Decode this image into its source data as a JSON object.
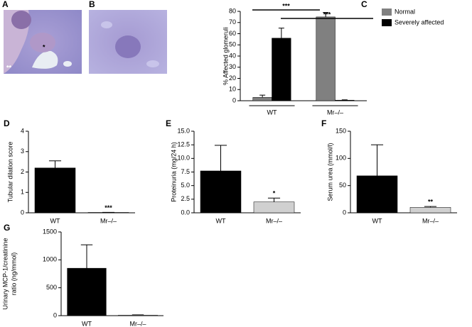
{
  "panels": [
    {
      "label": "A",
      "annotations": [
        "*",
        "**"
      ]
    },
    {
      "label": "B"
    }
  ],
  "chart_data": [
    {
      "type": "bar",
      "panel": "C",
      "ylabel": "% Affected glomeruli",
      "categories": [
        "WT",
        "Mr–/–"
      ],
      "series": [
        {
          "name": "Normal",
          "color": "#808080",
          "values": [
            3,
            75
          ],
          "errors": [
            2,
            4
          ]
        },
        {
          "name": "Severely affected",
          "color": "#000000",
          "values": [
            56,
            0.5
          ],
          "errors": [
            9,
            0.3
          ]
        }
      ],
      "ylim": [
        0,
        80
      ],
      "yticks": [
        0,
        10,
        20,
        30,
        40,
        50,
        60,
        70,
        80
      ],
      "significance": [
        "***",
        "***"
      ],
      "legend": "outside-right"
    },
    {
      "type": "bar",
      "panel": "D",
      "ylabel": "Tubular dilation score",
      "categories": [
        "WT",
        "Mr–/–"
      ],
      "values": [
        2.2,
        0.02
      ],
      "errors": [
        0.35,
        0
      ],
      "colors": [
        "#000000",
        "#d0d0d0"
      ],
      "annotation": "***",
      "ylim": [
        0,
        4
      ],
      "yticks": [
        0,
        1,
        2,
        3,
        4
      ]
    },
    {
      "type": "bar",
      "panel": "E",
      "ylabel": "Proteinuria (mg/24 h)",
      "categories": [
        "WT",
        "Mr–/–"
      ],
      "values": [
        7.7,
        2.0
      ],
      "errors": [
        4.7,
        0.7
      ],
      "colors": [
        "#000000",
        "#d0d0d0"
      ],
      "annotation": "*",
      "ylim": [
        0,
        15
      ],
      "yticks": [
        {
          "value": 0,
          "label": "0.0"
        },
        {
          "value": 2.5,
          "label": "2.5"
        },
        {
          "value": 5,
          "label": "5.0"
        },
        {
          "value": 7.5,
          "label": "7.5"
        },
        {
          "value": 10,
          "label": "10.0"
        },
        {
          "value": 12.5,
          "label": "12.5"
        },
        {
          "value": 15,
          "label": "15.0"
        }
      ]
    },
    {
      "type": "bar",
      "panel": "F",
      "ylabel": "Serum urea (mmol/l)",
      "categories": [
        "WT",
        "Mr–/–"
      ],
      "values": [
        68,
        10
      ],
      "errors": [
        57,
        1.5
      ],
      "colors": [
        "#000000",
        "#d0d0d0"
      ],
      "annotation": "**",
      "ylim": [
        0,
        150
      ],
      "yticks": [
        0,
        50,
        100,
        150
      ]
    },
    {
      "type": "bar",
      "panel": "G",
      "ylabel": [
        "Urinary MCP-1/creatinine",
        "ratio (ng/mmol)"
      ],
      "categories": [
        "WT",
        "Mr–/–"
      ],
      "values": [
        850,
        10
      ],
      "errors": [
        420,
        5
      ],
      "colors": [
        "#000000",
        "#d0d0d0"
      ],
      "ylim": [
        0,
        1500
      ],
      "yticks": [
        0,
        500,
        1000,
        1500
      ]
    }
  ]
}
